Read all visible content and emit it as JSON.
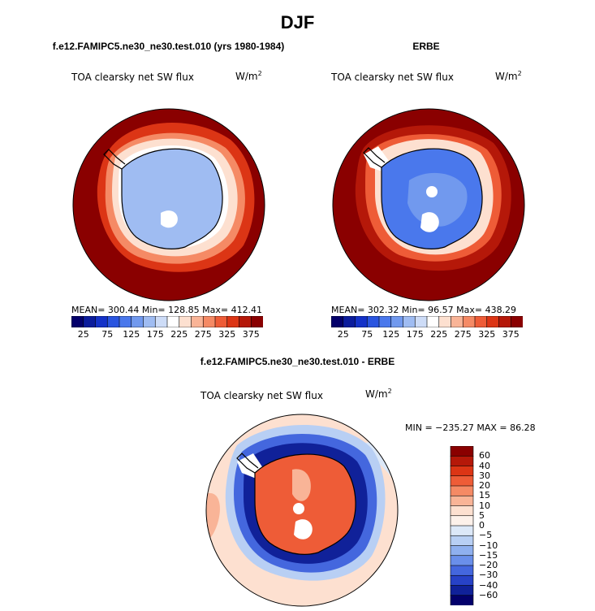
{
  "page": {
    "title": "DJF"
  },
  "chart_data": [
    {
      "type": "heatmap",
      "projection": "south-polar-stereographic",
      "title": "f.e12.FAMIPC5.ne30_ne30.test.010 (yrs 1980-1984)",
      "variable": "TOA clearsky net SW flux",
      "units": "W/m",
      "units_exp": "2",
      "stats_text": "MEAN= 300.44   Min= 128.85   Max= 412.41",
      "stats": {
        "mean": 300.44,
        "min": 128.85,
        "max": 412.41
      },
      "colorbar": {
        "orientation": "horizontal",
        "levels": [
          25,
          50,
          75,
          100,
          125,
          150,
          175,
          200,
          225,
          250,
          275,
          300,
          325,
          350,
          375
        ],
        "tick_labels": [
          "25",
          "75",
          "125",
          "175",
          "225",
          "275",
          "325",
          "375"
        ],
        "colors": [
          "#03006b",
          "#0b1c9c",
          "#1432c8",
          "#2a55e0",
          "#4a78ec",
          "#7199ee",
          "#9fbcf2",
          "#cddcf7",
          "#ffffff",
          "#fde0d0",
          "#f9b497",
          "#f58a65",
          "#ee5c37",
          "#dc3515",
          "#b51809",
          "#8a0000"
        ]
      },
      "field": {
        "antarctica": 175,
        "sea_ice_ring": 225,
        "ocean": 400
      }
    },
    {
      "type": "heatmap",
      "projection": "south-polar-stereographic",
      "title": "ERBE",
      "variable": "TOA clearsky net SW flux",
      "units": "W/m",
      "units_exp": "2",
      "stats_text": "MEAN= 302.32   Min=  96.57   Max= 438.29",
      "stats": {
        "mean": 302.32,
        "min": 96.57,
        "max": 438.29
      },
      "colorbar": {
        "orientation": "horizontal",
        "levels": [
          25,
          50,
          75,
          100,
          125,
          150,
          175,
          200,
          225,
          250,
          275,
          300,
          325,
          350,
          375
        ],
        "tick_labels": [
          "25",
          "75",
          "125",
          "175",
          "225",
          "275",
          "325",
          "375"
        ],
        "colors": [
          "#03006b",
          "#0b1c9c",
          "#1432c8",
          "#2a55e0",
          "#4a78ec",
          "#7199ee",
          "#9fbcf2",
          "#cddcf7",
          "#ffffff",
          "#fde0d0",
          "#f9b497",
          "#f58a65",
          "#ee5c37",
          "#dc3515",
          "#b51809",
          "#8a0000"
        ]
      },
      "field": {
        "antarctica": 150,
        "sea_ice_ring": 300,
        "ocean": 400
      }
    },
    {
      "type": "heatmap",
      "projection": "south-polar-stereographic",
      "title": "f.e12.FAMIPC5.ne30_ne30.test.010 - ERBE",
      "variable": "TOA clearsky net SW flux",
      "units": "W/m",
      "units_exp": "2",
      "stats_text": "MIN = −235.27  MAX =  86.28",
      "stats": {
        "min": -235.27,
        "max": 86.28
      },
      "colorbar": {
        "orientation": "vertical",
        "levels": [
          -60,
          -40,
          -30,
          -20,
          -15,
          -10,
          -5,
          0,
          5,
          10,
          15,
          20,
          30,
          40,
          60
        ],
        "tick_labels": [
          "60",
          "40",
          "30",
          "20",
          "15",
          "10",
          "5",
          "0",
          "−5",
          "−10",
          "−15",
          "−20",
          "−30",
          "−40",
          "−60"
        ],
        "colors_top_to_bottom": [
          "#8a0000",
          "#b51809",
          "#dc3515",
          "#ee5c37",
          "#f58a65",
          "#f9b497",
          "#fde0d0",
          "#fdf1ea",
          "#dce8f8",
          "#b8cff4",
          "#8fb0ef",
          "#6a8fea",
          "#4467de",
          "#2742c7",
          "#102199",
          "#03006b"
        ]
      },
      "field": {
        "antarctica": 20,
        "sea_ice_ring": -40,
        "ocean": 2
      }
    }
  ]
}
